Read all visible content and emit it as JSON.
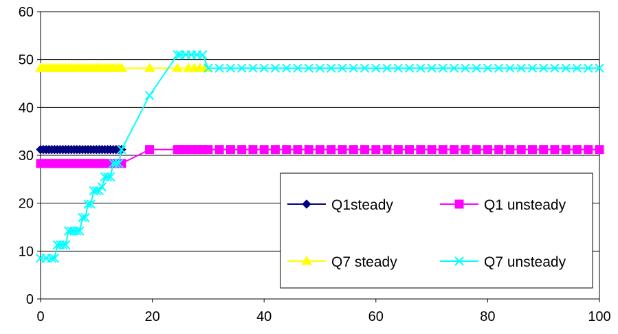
{
  "chart_data": {
    "type": "line",
    "title": "",
    "xlabel": "",
    "ylabel": "",
    "xlim": [
      0,
      100
    ],
    "ylim": [
      0,
      60
    ],
    "x_ticks": [
      "0",
      "20",
      "40",
      "60",
      "80",
      "100"
    ],
    "y_ticks": [
      "0",
      "10",
      "20",
      "30",
      "40",
      "50",
      "60"
    ],
    "grid": "horizontal",
    "legend_position": "bottom-right",
    "series": [
      {
        "name": "Q1steady",
        "color": "#000080",
        "marker": "diamond",
        "x": [
          0,
          0.5,
          1,
          1.5,
          2,
          2.5,
          3,
          3.5,
          4,
          4.5,
          5,
          5.5,
          6,
          6.5,
          7,
          7.5,
          8,
          8.5,
          9,
          9.5,
          10,
          10.5,
          11,
          11.5,
          12,
          12.5,
          13,
          13.5,
          14,
          14.5
        ],
        "y": [
          31.2,
          31.2,
          31.2,
          31.2,
          31.2,
          31.2,
          31.2,
          31.2,
          31.2,
          31.2,
          31.2,
          31.2,
          31.2,
          31.2,
          31.2,
          31.2,
          31.2,
          31.2,
          31.2,
          31.2,
          31.2,
          31.2,
          31.2,
          31.2,
          31.2,
          31.2,
          31.2,
          31.2,
          31.2,
          31.2
        ]
      },
      {
        "name": "Q1 unsteady",
        "color": "#ff00ff",
        "marker": "square",
        "x": [
          0,
          0.5,
          1,
          1.5,
          2,
          2.5,
          3,
          3.5,
          4,
          4.5,
          5,
          5.5,
          6,
          6.5,
          7,
          7.5,
          8,
          8.5,
          9,
          9.5,
          10,
          10.5,
          11,
          11.5,
          12,
          12.5,
          13,
          13.5,
          14,
          14.5,
          19.5,
          24.5,
          25,
          26,
          27,
          28,
          29,
          30,
          32,
          34,
          36,
          38,
          40,
          42,
          44,
          46,
          48,
          50,
          52,
          54,
          56,
          58,
          60,
          62,
          64,
          66,
          68,
          70,
          72,
          74,
          76,
          78,
          80,
          82,
          84,
          86,
          88,
          90,
          92,
          94,
          96,
          98,
          100
        ],
        "y": [
          28.3,
          28.3,
          28.3,
          28.3,
          28.3,
          28.3,
          28.3,
          28.3,
          28.3,
          28.3,
          28.3,
          28.3,
          28.3,
          28.3,
          28.3,
          28.3,
          28.3,
          28.3,
          28.3,
          28.3,
          28.3,
          28.3,
          28.3,
          28.3,
          28.3,
          28.3,
          28.3,
          28.3,
          28.3,
          28.3,
          31.2,
          31.2,
          31.2,
          31.2,
          31.2,
          31.2,
          31.2,
          31.2,
          31.2,
          31.2,
          31.2,
          31.2,
          31.2,
          31.2,
          31.2,
          31.2,
          31.2,
          31.2,
          31.2,
          31.2,
          31.2,
          31.2,
          31.2,
          31.2,
          31.2,
          31.2,
          31.2,
          31.2,
          31.2,
          31.2,
          31.2,
          31.2,
          31.2,
          31.2,
          31.2,
          31.2,
          31.2,
          31.2,
          31.2,
          31.2,
          31.2,
          31.2,
          31.2
        ]
      },
      {
        "name": "Q7 steady",
        "color": "#ffff00",
        "marker": "triangle",
        "x": [
          0,
          0.5,
          1,
          1.5,
          2,
          2.5,
          3,
          3.5,
          4,
          4.5,
          5,
          5.5,
          6,
          6.5,
          7,
          7.5,
          8,
          8.5,
          9,
          9.5,
          10,
          10.5,
          11,
          11.5,
          12,
          12.5,
          13,
          13.5,
          14,
          14.5,
          19.5,
          24.5,
          26.5,
          27.5,
          28.5,
          29.5
        ],
        "y": [
          48.2,
          48.2,
          48.2,
          48.2,
          48.2,
          48.2,
          48.2,
          48.2,
          48.2,
          48.2,
          48.2,
          48.2,
          48.2,
          48.2,
          48.2,
          48.2,
          48.2,
          48.2,
          48.2,
          48.2,
          48.2,
          48.2,
          48.2,
          48.2,
          48.2,
          48.2,
          48.2,
          48.2,
          48.2,
          48.2,
          48.2,
          48.2,
          48.2,
          48.2,
          48.2,
          48.2
        ]
      },
      {
        "name": "Q7 unsteady",
        "color": "#00ffff",
        "marker": "x",
        "x": [
          0,
          1,
          2,
          2.5,
          3,
          3.5,
          4,
          4.5,
          5,
          5.5,
          6,
          6.5,
          7,
          7.5,
          8,
          8.5,
          9,
          9.5,
          10,
          10.5,
          11,
          11.5,
          12,
          12.5,
          13,
          13.5,
          14,
          14.5,
          19.5,
          24.5,
          25,
          26,
          27,
          28,
          29,
          30,
          32,
          34,
          36,
          38,
          40,
          42,
          44,
          46,
          48,
          50,
          52,
          54,
          56,
          58,
          60,
          62,
          64,
          66,
          68,
          70,
          72,
          74,
          76,
          78,
          80,
          82,
          84,
          86,
          88,
          90,
          92,
          94,
          96,
          98,
          100
        ],
        "y": [
          8.5,
          8.5,
          8.5,
          8.5,
          11.3,
          11.3,
          11.3,
          11.3,
          14.2,
          14.2,
          14.2,
          14.2,
          14.2,
          17.0,
          17.0,
          19.8,
          19.8,
          22.6,
          22.6,
          22.6,
          23.4,
          25.5,
          25.5,
          25.5,
          28.3,
          28.3,
          28.3,
          31.2,
          42.5,
          51.0,
          51.0,
          51.0,
          51.0,
          51.0,
          51.0,
          48.2,
          48.2,
          48.2,
          48.2,
          48.2,
          48.2,
          48.2,
          48.2,
          48.2,
          48.2,
          48.2,
          48.2,
          48.2,
          48.2,
          48.2,
          48.2,
          48.2,
          48.2,
          48.2,
          48.2,
          48.2,
          48.2,
          48.2,
          48.2,
          48.2,
          48.2,
          48.2,
          48.2,
          48.2,
          48.2,
          48.2,
          48.2,
          48.2,
          48.2,
          48.2,
          48.2
        ]
      }
    ]
  }
}
